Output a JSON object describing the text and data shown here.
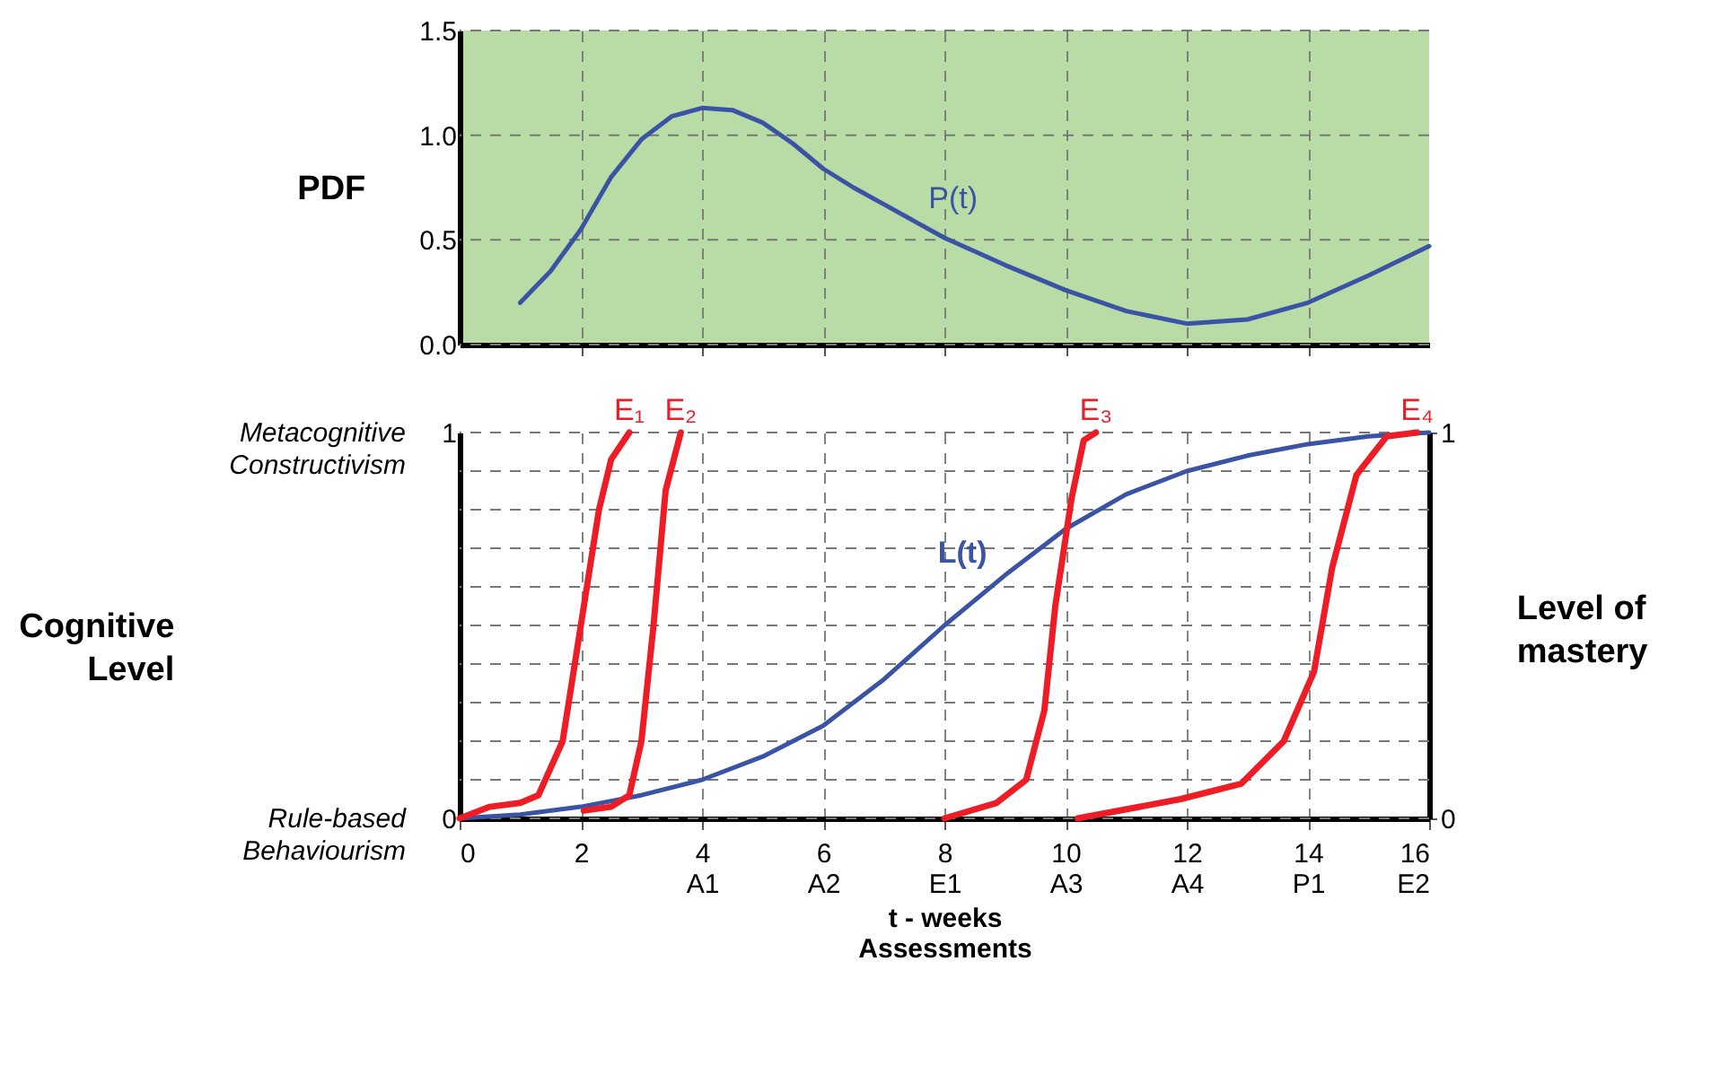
{
  "chart_data": [
    {
      "type": "line",
      "ylabel": "PDF",
      "xlim": [
        0,
        16
      ],
      "xticks": [
        {
          "value": 2,
          "label": null
        },
        {
          "value": 4,
          "label": null
        },
        {
          "value": 6,
          "label": null
        },
        {
          "value": 8,
          "label": null
        },
        {
          "value": 10,
          "label": null
        },
        {
          "value": 12,
          "label": null
        },
        {
          "value": 14,
          "label": null
        }
      ],
      "ylim": [
        0,
        1.5
      ],
      "yticks": [
        {
          "value": 0,
          "label": "0.0"
        },
        {
          "value": 0.5,
          "label": "0.5"
        },
        {
          "value": 1,
          "label": "1.0"
        },
        {
          "value": 1.5,
          "label": "1.5"
        }
      ],
      "grid": true,
      "tick_labels": "y",
      "series": [
        {
          "name": "P(t)",
          "color": "#3a53a4",
          "x": [
            1,
            1.5,
            2,
            2.5,
            3,
            3.5,
            4,
            4.5,
            5,
            5.5,
            6,
            6.5,
            7,
            7.5,
            8,
            9,
            10,
            11,
            12,
            13,
            14,
            15,
            16
          ],
          "values": [
            0.2,
            0.35,
            0.55,
            0.8,
            0.98,
            1.09,
            1.13,
            1.12,
            1.06,
            0.96,
            0.84,
            0.75,
            0.67,
            0.59,
            0.51,
            0.38,
            0.26,
            0.16,
            0.1,
            0.12,
            0.2,
            0.33,
            0.47
          ]
        }
      ]
    },
    {
      "type": "line",
      "xlabel": "t - weeks\nAssessments",
      "ylabel": "Cognitive\nLevel",
      "y2label": "Level of\nmastery",
      "xlim": [
        0,
        16
      ],
      "xticks": [
        0,
        2,
        {
          "value": 4,
          "label": "4\nA1"
        },
        {
          "value": 6,
          "label": "6\nA2"
        },
        {
          "value": 8,
          "label": "8\nE1"
        },
        {
          "value": 10,
          "label": "10\nA3"
        },
        {
          "value": 12,
          "label": "12\nA4"
        },
        {
          "value": 14,
          "label": "14\nP1"
        },
        {
          "value": 16,
          "label": "16\nE2"
        }
      ],
      "ylim": [
        0,
        1
      ],
      "yticks": [
        0,
        {
          "value": 0.1,
          "label": null
        },
        {
          "value": 0.2,
          "label": null
        },
        {
          "value": 0.3,
          "label": null
        },
        {
          "value": 0.4,
          "label": null
        },
        {
          "value": 0.5,
          "label": null
        },
        {
          "value": 0.6,
          "label": null
        },
        {
          "value": 0.7,
          "label": null
        },
        {
          "value": 0.8,
          "label": null
        },
        {
          "value": 0.9,
          "label": null
        },
        1
      ],
      "y2lim": [
        0,
        1
      ],
      "y2ticks": [
        0,
        1
      ],
      "grid": true,
      "annotations": [
        "Rule-based\nBehaviourism",
        "Metacognitive\nConstructivism"
      ],
      "series": [
        {
          "name": "L(t)",
          "color": "#3a53a4",
          "x": [
            0,
            1,
            2,
            3,
            4,
            5,
            6,
            7,
            8,
            9,
            10,
            11,
            12,
            13,
            14,
            15,
            16
          ],
          "values": [
            0,
            0.01,
            0.03,
            0.06,
            0.1,
            0.16,
            0.24,
            0.36,
            0.5,
            0.63,
            0.75,
            0.84,
            0.9,
            0.94,
            0.97,
            0.99,
            1
          ]
        },
        {
          "name": "E₁",
          "color": "#ee1c25",
          "axis": "y2",
          "x": [
            0,
            0.5,
            1,
            1.3,
            1.7,
            2,
            2.3,
            2.5,
            2.8
          ],
          "values": [
            0,
            0.03,
            0.04,
            0.06,
            0.2,
            0.5,
            0.8,
            0.93,
            1
          ]
        },
        {
          "name": "E₂",
          "color": "#ee1c25",
          "axis": "y2",
          "x": [
            2.05,
            2.5,
            2.8,
            3,
            3.2,
            3.4,
            3.65
          ],
          "values": [
            0.02,
            0.03,
            0.06,
            0.2,
            0.5,
            0.85,
            1
          ]
        },
        {
          "name": "E₃",
          "color": "#ee1c25",
          "axis": "y2",
          "x": [
            8,
            8.86,
            9.35,
            9.65,
            9.83,
            10.1,
            10.3,
            10.5
          ],
          "values": [
            0,
            0.04,
            0.1,
            0.28,
            0.55,
            0.83,
            0.98,
            1
          ]
        },
        {
          "name": "E₄",
          "color": "#ee1c25",
          "axis": "y2",
          "x": [
            10.2,
            11.9,
            12.9,
            13.6,
            14.1,
            14.4,
            14.8,
            15.3,
            15.8
          ],
          "values": [
            0,
            0.05,
            0.09,
            0.2,
            0.38,
            0.65,
            0.89,
            0.99,
            1
          ]
        }
      ]
    }
  ]
}
